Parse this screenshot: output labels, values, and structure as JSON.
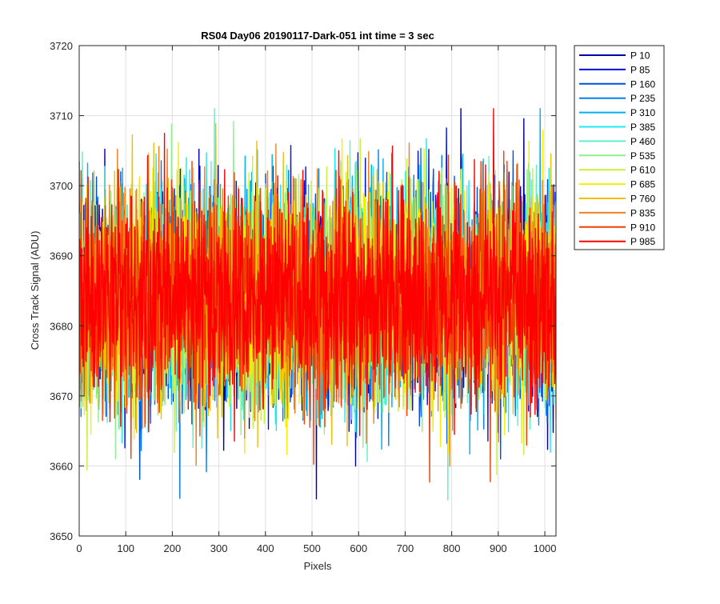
{
  "chart_data": {
    "type": "line",
    "title": "RS04 Day06 20190117-Dark-051 int time = 3 sec",
    "xlabel": "Pixels",
    "ylabel": "Cross Track Signal (ADU)",
    "xlim": [
      0,
      1024
    ],
    "ylim": [
      3650,
      3720
    ],
    "xticks": [
      0,
      100,
      200,
      300,
      400,
      500,
      600,
      700,
      800,
      900,
      1000
    ],
    "yticks": [
      3650,
      3660,
      3670,
      3680,
      3690,
      3700,
      3710,
      3720
    ],
    "xtick_labels": [
      "0",
      "100",
      "200",
      "300",
      "400",
      "500",
      "600",
      "700",
      "800",
      "900",
      "1000"
    ],
    "ytick_labels": [
      "3650",
      "3660",
      "3670",
      "3680",
      "3690",
      "3700",
      "3710",
      "3720"
    ],
    "grid": true,
    "legend_position": "outside-top-right",
    "noise_model": {
      "n_points": 1024,
      "mean": 3684,
      "sigma": 7.5,
      "min": 3652,
      "max": 3711
    },
    "series": [
      {
        "name": "P 10",
        "color": "#0000aa",
        "seed": 10
      },
      {
        "name": "P 85",
        "color": "#0010e0",
        "seed": 85
      },
      {
        "name": "P 160",
        "color": "#0050e0",
        "seed": 160
      },
      {
        "name": "P 235",
        "color": "#0080f0",
        "seed": 235
      },
      {
        "name": "P 310",
        "color": "#00b0f0",
        "seed": 310
      },
      {
        "name": "P 385",
        "color": "#20e8f0",
        "seed": 385
      },
      {
        "name": "P 460",
        "color": "#60f0c8",
        "seed": 460
      },
      {
        "name": "P 535",
        "color": "#90f090",
        "seed": 535
      },
      {
        "name": "P 610",
        "color": "#c8f040",
        "seed": 610
      },
      {
        "name": "P 685",
        "color": "#f0f000",
        "seed": 685
      },
      {
        "name": "P 760",
        "color": "#f0c000",
        "seed": 760
      },
      {
        "name": "P 835",
        "color": "#f08020",
        "seed": 835
      },
      {
        "name": "P 910",
        "color": "#f04000",
        "seed": 910
      },
      {
        "name": "P 985",
        "color": "#ff0000",
        "seed": 985
      }
    ]
  }
}
